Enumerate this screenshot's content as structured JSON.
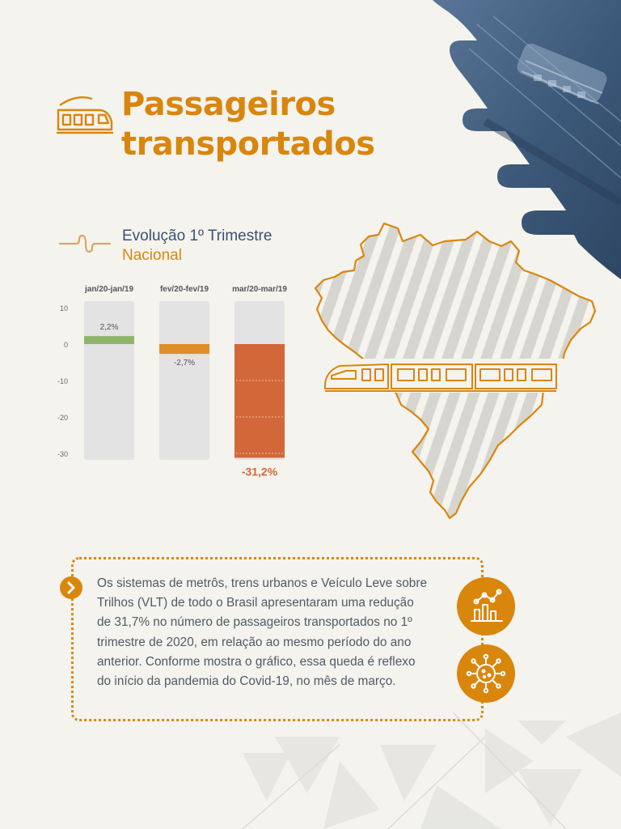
{
  "title": {
    "line1": "Passageiros",
    "line2": "transportados",
    "icon": "train-icon"
  },
  "subtitle": {
    "line1": "Evolução 1º Trimestre",
    "line2": "Nacional"
  },
  "chart_data": {
    "type": "bar",
    "categories": [
      "jan/20-jan/19",
      "fev/20-fev/19",
      "mar/20-mar/19"
    ],
    "values": [
      2.2,
      -2.7,
      -31.2
    ],
    "data_labels": [
      "2,2%",
      "-2,7%",
      "-31,2%"
    ],
    "ylim": [
      -30,
      10
    ],
    "yticks": [
      10,
      0,
      -10,
      -20,
      -30
    ],
    "ytick_labels": [
      "10",
      "0",
      "-10",
      "-20",
      "-30"
    ],
    "grid": false,
    "bar_colors": [
      "#8fb56a",
      "#e08e2a",
      "#d2673a"
    ]
  },
  "body_text": "Os sistemas de metrôs, trens urbanos e Veículo Leve sobre Trilhos (VLT) de todo o Brasil apresentaram uma redução de 31,7% no número de passageiros transportados no 1º trimestre de 2020, em relação ao mesmo período do ano anterior. Conforme mostra o gráfico, essa queda é reflexo do início da pandemia do Covid-19, no mês de março.",
  "colors": {
    "accent": "#d9860d",
    "navy": "#3b5171",
    "background": "#f4f3ee",
    "track": "#e3e3e3"
  },
  "icons": {
    "box_arrow": "chevron-right-icon",
    "circle1": "bar-chart-icon",
    "circle2": "virus-icon",
    "map": "brazil-map-icon",
    "map_train": "train-icon",
    "squiggle": "wavy-line-icon"
  }
}
